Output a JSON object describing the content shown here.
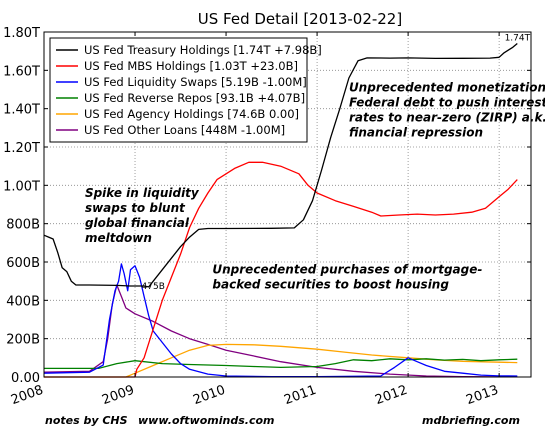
{
  "chart_data": {
    "type": "line",
    "title": "US Fed Detail  [2013-02-22]",
    "x_ticks": [
      "2008",
      "2009",
      "2010",
      "2011",
      "2012",
      "2013"
    ],
    "y_ticks": [
      "0.00",
      "200B",
      "400B",
      "600B",
      "800B",
      "1.00T",
      "1.20T",
      "1.40T",
      "1.60T",
      "1.80T"
    ],
    "ylim_billions": [
      0,
      1800
    ],
    "xlim_years": [
      2008.0,
      2013.35
    ],
    "grid": true,
    "legend_position": "top-left",
    "series": [
      {
        "name": "US Fed Treasury Holdings [1.74T +7.98B]",
        "color": "#000000",
        "points": [
          [
            2008.0,
            740
          ],
          [
            2008.05,
            730
          ],
          [
            2008.1,
            720
          ],
          [
            2008.15,
            650
          ],
          [
            2008.2,
            570
          ],
          [
            2008.25,
            550
          ],
          [
            2008.3,
            500
          ],
          [
            2008.35,
            480
          ],
          [
            2008.5,
            480
          ],
          [
            2008.8,
            478
          ],
          [
            2008.95,
            475
          ],
          [
            2009.1,
            475
          ],
          [
            2009.15,
            470
          ],
          [
            2009.2,
            500
          ],
          [
            2009.3,
            560
          ],
          [
            2009.4,
            620
          ],
          [
            2009.5,
            680
          ],
          [
            2009.6,
            730
          ],
          [
            2009.7,
            770
          ],
          [
            2009.8,
            775
          ],
          [
            2010.0,
            775
          ],
          [
            2010.5,
            776
          ],
          [
            2010.75,
            778
          ],
          [
            2010.85,
            820
          ],
          [
            2010.95,
            920
          ],
          [
            2011.05,
            1080
          ],
          [
            2011.15,
            1250
          ],
          [
            2011.25,
            1400
          ],
          [
            2011.35,
            1560
          ],
          [
            2011.45,
            1650
          ],
          [
            2011.55,
            1665
          ],
          [
            2011.8,
            1664
          ],
          [
            2012.0,
            1665
          ],
          [
            2012.3,
            1662
          ],
          [
            2012.6,
            1663
          ],
          [
            2012.9,
            1664
          ],
          [
            2013.0,
            1668
          ],
          [
            2013.05,
            1690
          ],
          [
            2013.1,
            1705
          ],
          [
            2013.15,
            1720
          ],
          [
            2013.2,
            1740
          ]
        ]
      },
      {
        "name": "US Fed MBS Holdings [1.03T +23.0B]",
        "color": "#ff0000",
        "points": [
          [
            2008.0,
            0
          ],
          [
            2009.0,
            0
          ],
          [
            2009.02,
            40
          ],
          [
            2009.1,
            100
          ],
          [
            2009.2,
            250
          ],
          [
            2009.3,
            400
          ],
          [
            2009.4,
            520
          ],
          [
            2009.5,
            640
          ],
          [
            2009.6,
            780
          ],
          [
            2009.7,
            880
          ],
          [
            2009.8,
            960
          ],
          [
            2009.9,
            1030
          ],
          [
            2010.0,
            1060
          ],
          [
            2010.1,
            1090
          ],
          [
            2010.25,
            1120
          ],
          [
            2010.4,
            1120
          ],
          [
            2010.6,
            1100
          ],
          [
            2010.8,
            1060
          ],
          [
            2010.9,
            1000
          ],
          [
            2011.0,
            960
          ],
          [
            2011.2,
            920
          ],
          [
            2011.4,
            890
          ],
          [
            2011.6,
            860
          ],
          [
            2011.7,
            840
          ],
          [
            2011.9,
            845
          ],
          [
            2012.1,
            850
          ],
          [
            2012.3,
            845
          ],
          [
            2012.5,
            850
          ],
          [
            2012.7,
            860
          ],
          [
            2012.85,
            880
          ],
          [
            2013.0,
            940
          ],
          [
            2013.1,
            980
          ],
          [
            2013.2,
            1030
          ]
        ]
      },
      {
        "name": "US Fed Liquidity Swaps [5.19B -1.00M]",
        "color": "#0000ff",
        "points": [
          [
            2008.0,
            20
          ],
          [
            2008.5,
            25
          ],
          [
            2008.65,
            62
          ],
          [
            2008.72,
            300
          ],
          [
            2008.78,
            450
          ],
          [
            2008.82,
            500
          ],
          [
            2008.85,
            590
          ],
          [
            2008.88,
            540
          ],
          [
            2008.92,
            450
          ],
          [
            2008.95,
            560
          ],
          [
            2009.0,
            580
          ],
          [
            2009.05,
            520
          ],
          [
            2009.1,
            420
          ],
          [
            2009.15,
            320
          ],
          [
            2009.2,
            240
          ],
          [
            2009.3,
            180
          ],
          [
            2009.4,
            120
          ],
          [
            2009.5,
            70
          ],
          [
            2009.6,
            40
          ],
          [
            2009.8,
            15
          ],
          [
            2010.0,
            5
          ],
          [
            2010.5,
            2
          ],
          [
            2011.0,
            2
          ],
          [
            2011.7,
            5
          ],
          [
            2011.85,
            50
          ],
          [
            2012.0,
            100
          ],
          [
            2012.1,
            80
          ],
          [
            2012.2,
            60
          ],
          [
            2012.4,
            30
          ],
          [
            2012.6,
            20
          ],
          [
            2012.8,
            10
          ],
          [
            2013.0,
            6
          ],
          [
            2013.2,
            5
          ]
        ]
      },
      {
        "name": "US Fed Reverse Repos [93.1B +4.07B]",
        "color": "#008000",
        "points": [
          [
            2008.0,
            45
          ],
          [
            2008.3,
            45
          ],
          [
            2008.6,
            45
          ],
          [
            2008.8,
            70
          ],
          [
            2009.0,
            85
          ],
          [
            2009.3,
            70
          ],
          [
            2009.6,
            65
          ],
          [
            2010.0,
            60
          ],
          [
            2010.3,
            55
          ],
          [
            2010.6,
            50
          ],
          [
            2011.0,
            55
          ],
          [
            2011.2,
            70
          ],
          [
            2011.4,
            90
          ],
          [
            2011.6,
            85
          ],
          [
            2011.8,
            95
          ],
          [
            2012.0,
            90
          ],
          [
            2012.2,
            95
          ],
          [
            2012.4,
            88
          ],
          [
            2012.6,
            92
          ],
          [
            2012.8,
            85
          ],
          [
            2013.0,
            90
          ],
          [
            2013.2,
            93
          ]
        ]
      },
      {
        "name": "US Fed Agency Holdings [74.6B 0.00]",
        "color": "#ffa500",
        "points": [
          [
            2008.0,
            0
          ],
          [
            2008.9,
            0
          ],
          [
            2009.0,
            20
          ],
          [
            2009.2,
            60
          ],
          [
            2009.4,
            100
          ],
          [
            2009.6,
            140
          ],
          [
            2009.8,
            165
          ],
          [
            2010.0,
            170
          ],
          [
            2010.3,
            168
          ],
          [
            2010.6,
            160
          ],
          [
            2011.0,
            145
          ],
          [
            2011.3,
            130
          ],
          [
            2011.6,
            115
          ],
          [
            2012.0,
            100
          ],
          [
            2012.3,
            90
          ],
          [
            2012.6,
            82
          ],
          [
            2013.0,
            77
          ],
          [
            2013.2,
            75
          ]
        ]
      },
      {
        "name": "US Fed Other Loans [448M -1.00M]",
        "color": "#800080",
        "points": [
          [
            2008.0,
            25
          ],
          [
            2008.5,
            30
          ],
          [
            2008.65,
            80
          ],
          [
            2008.7,
            200
          ],
          [
            2008.75,
            380
          ],
          [
            2008.8,
            480
          ],
          [
            2008.85,
            420
          ],
          [
            2008.9,
            360
          ],
          [
            2009.0,
            330
          ],
          [
            2009.2,
            290
          ],
          [
            2009.4,
            240
          ],
          [
            2009.6,
            200
          ],
          [
            2009.8,
            170
          ],
          [
            2010.0,
            140
          ],
          [
            2010.3,
            110
          ],
          [
            2010.6,
            80
          ],
          [
            2011.0,
            50
          ],
          [
            2011.4,
            30
          ],
          [
            2011.8,
            15
          ],
          [
            2012.2,
            5
          ],
          [
            2012.6,
            2
          ],
          [
            2013.2,
            0.5
          ]
        ]
      }
    ],
    "annotations": [
      {
        "text": "1.74T",
        "x": 2013.2,
        "y": 1755,
        "style": "value"
      },
      {
        "text": "475B",
        "x": 2009.2,
        "y": 460,
        "style": "value"
      },
      {
        "lines": [
          "Spike in liquidity",
          "swaps to blunt",
          "global financial",
          "meltdown"
        ],
        "x": 2008.45,
        "y": 940,
        "style": "note"
      },
      {
        "lines": [
          "Unprecedented purchases of mortgage-",
          "backed securities to boost housing"
        ],
        "x": 2009.85,
        "y": 540,
        "style": "note"
      },
      {
        "lines": [
          "Unprecedented monetization of",
          "Federal debt to push interest",
          "rates to near-zero (ZIRP) a.k.a.",
          "financial repression"
        ],
        "x": 2011.35,
        "y": 1490,
        "style": "note"
      }
    ]
  },
  "footer": {
    "left": "notes by CHS",
    "middle": "www.oftwominds.com",
    "right": "mdbriefing.com"
  }
}
